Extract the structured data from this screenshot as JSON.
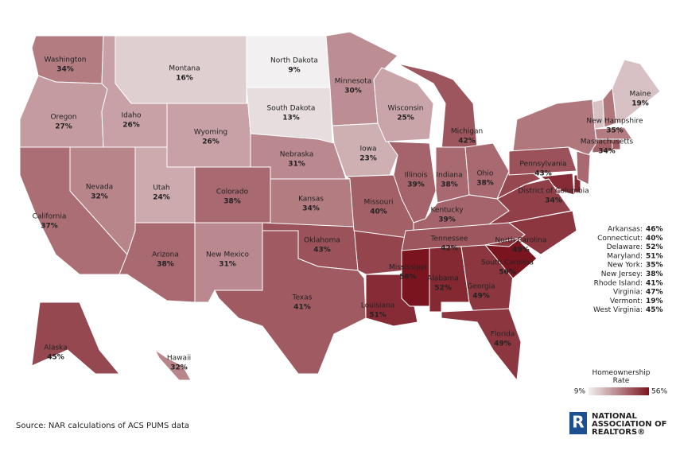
{
  "chart_data": {
    "type": "choropleth",
    "states": [
      {
        "name": "Washington",
        "value": 34,
        "value_label": "34%"
      },
      {
        "name": "Oregon",
        "value": 27,
        "value_label": "27%"
      },
      {
        "name": "California",
        "value": 37,
        "value_label": "37%"
      },
      {
        "name": "Nevada",
        "value": 32,
        "value_label": "32%"
      },
      {
        "name": "Idaho",
        "value": 26,
        "value_label": "26%"
      },
      {
        "name": "Montana",
        "value": 16,
        "value_label": "16%"
      },
      {
        "name": "Wyoming",
        "value": 26,
        "value_label": "26%"
      },
      {
        "name": "Utah",
        "value": 24,
        "value_label": "24%"
      },
      {
        "name": "Arizona",
        "value": 38,
        "value_label": "38%"
      },
      {
        "name": "Colorado",
        "value": 38,
        "value_label": "38%"
      },
      {
        "name": "New Mexico",
        "value": 31,
        "value_label": "31%"
      },
      {
        "name": "North Dakota",
        "value": 9,
        "value_label": "9%"
      },
      {
        "name": "South Dakota",
        "value": 13,
        "value_label": "13%"
      },
      {
        "name": "Nebraska",
        "value": 31,
        "value_label": "31%"
      },
      {
        "name": "Kansas",
        "value": 34,
        "value_label": "34%"
      },
      {
        "name": "Oklahoma",
        "value": 43,
        "value_label": "43%"
      },
      {
        "name": "Texas",
        "value": 41,
        "value_label": "41%"
      },
      {
        "name": "Minnesota",
        "value": 30,
        "value_label": "30%"
      },
      {
        "name": "Iowa",
        "value": 23,
        "value_label": "23%"
      },
      {
        "name": "Missouri",
        "value": 40,
        "value_label": "40%"
      },
      {
        "name": "Louisiana",
        "value": 51,
        "value_label": "51%"
      },
      {
        "name": "Wisconsin",
        "value": 25,
        "value_label": "25%"
      },
      {
        "name": "Illinois",
        "value": 39,
        "value_label": "39%"
      },
      {
        "name": "Michigan",
        "value": 42,
        "value_label": "42%"
      },
      {
        "name": "Indiana",
        "value": 38,
        "value_label": "38%"
      },
      {
        "name": "Ohio",
        "value": 38,
        "value_label": "38%"
      },
      {
        "name": "Kentucky",
        "value": 39,
        "value_label": "39%"
      },
      {
        "name": "Tennessee",
        "value": 42,
        "value_label": "42%"
      },
      {
        "name": "Mississippi",
        "value": 56,
        "value_label": "56%"
      },
      {
        "name": "Alabama",
        "value": 52,
        "value_label": "52%"
      },
      {
        "name": "Georgia",
        "value": 49,
        "value_label": "49%"
      },
      {
        "name": "Florida",
        "value": 49,
        "value_label": "49%"
      },
      {
        "name": "South Carolina",
        "value": 56,
        "value_label": "56%"
      },
      {
        "name": "North Carolina",
        "value": 49,
        "value_label": "49%"
      },
      {
        "name": "Pennsylvania",
        "value": 43,
        "value_label": "43%"
      },
      {
        "name": "New Hampshire",
        "value": 35,
        "value_label": "35%"
      },
      {
        "name": "Maine",
        "value": 19,
        "value_label": "19%"
      },
      {
        "name": "Massachusetts",
        "value": 34,
        "value_label": "34%"
      },
      {
        "name": "District of Columbia",
        "value": 34,
        "value_label": "34%"
      },
      {
        "name": "Alaska",
        "value": 45,
        "value_label": "45%"
      },
      {
        "name": "Hawaii",
        "value": 32,
        "value_label": "32%"
      }
    ],
    "side_list": [
      {
        "label": "Arkansas:",
        "value": 46,
        "value_label": "46%"
      },
      {
        "label": "Connecticut:",
        "value": 40,
        "value_label": "40%"
      },
      {
        "label": "Delaware:",
        "value": 52,
        "value_label": "52%"
      },
      {
        "label": "Maryland:",
        "value": 51,
        "value_label": "51%"
      },
      {
        "label": "New York:",
        "value": 35,
        "value_label": "35%"
      },
      {
        "label": "New Jersey:",
        "value": 38,
        "value_label": "38%"
      },
      {
        "label": "Rhode Island:",
        "value": 41,
        "value_label": "41%"
      },
      {
        "label": "Virginia:",
        "value": 47,
        "value_label": "47%"
      },
      {
        "label": "Vermont:",
        "value": 19,
        "value_label": "19%"
      },
      {
        "label": "West Virginia:",
        "value": 45,
        "value_label": "45%"
      }
    ],
    "legend": {
      "title": "Homeownership Rate",
      "range": [
        {
          "value": 9,
          "label": "9%"
        },
        {
          "value": 56,
          "label": "56%"
        }
      ],
      "colors": [
        "#f2f0f0",
        "#7a1520"
      ]
    },
    "source": "Source: NAR calculations of ACS PUMS data",
    "logo": [
      "NATIONAL",
      "ASSOCIATION OF",
      "REALTORS®"
    ]
  }
}
